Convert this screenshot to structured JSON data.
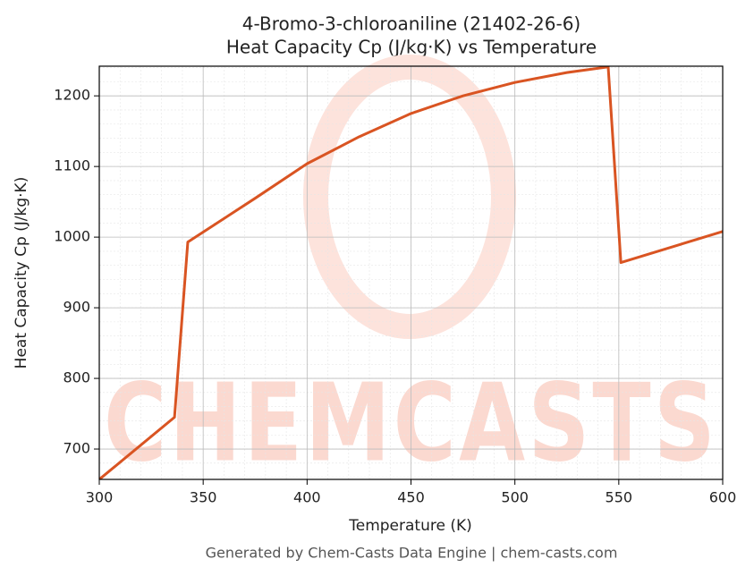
{
  "chart_data": {
    "type": "line",
    "title": "4-Bromo-3-chloroaniline (21402-26-6)",
    "subtitle": "Heat Capacity Cp (J/kg·K) vs Temperature",
    "x_label": "Temperature (K)",
    "y_label": "Heat Capacity Cp (J/kg·K)",
    "watermark": "CHEMCASTS",
    "footer": "Generated by Chem-Casts Data Engine | chem-casts.com",
    "x": [
      300,
      336.2,
      342.6,
      375,
      400,
      425,
      450,
      475,
      500,
      525,
      544.9,
      551,
      600
    ],
    "series": [
      {
        "name": "Cp",
        "color": "#d95422",
        "values": [
          657,
          745,
          993,
          1055,
          1104,
          1142,
          1175,
          1200,
          1219,
          1233,
          1241,
          964,
          1008
        ]
      }
    ],
    "xlim": [
      300,
      600
    ],
    "xticks": [
      300,
      350,
      400,
      450,
      500,
      550,
      600
    ],
    "ylim": [
      657,
      1242
    ],
    "yticks": [
      700,
      800,
      900,
      1000,
      1100,
      1200
    ],
    "grid": true,
    "minor_grid": true
  }
}
